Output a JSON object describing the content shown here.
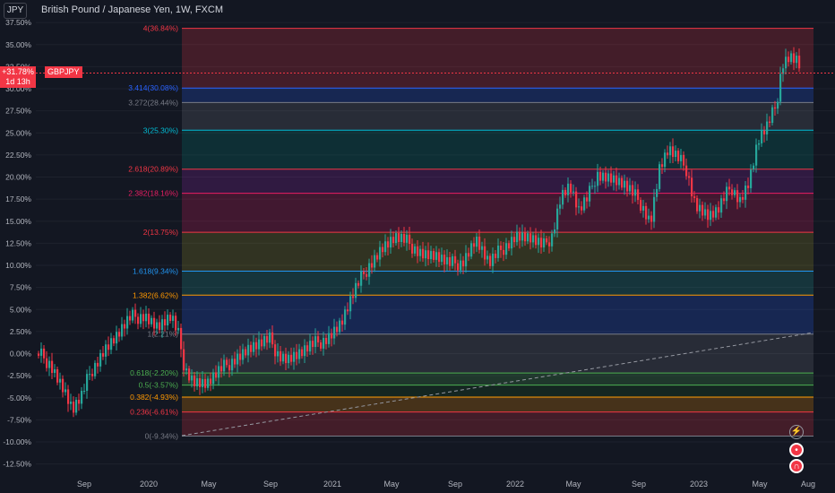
{
  "header": {
    "symbol": "JPY",
    "title": "British Pound / Japanese Yen, 1W, FXCM"
  },
  "badges": {
    "current_value": "+31.78%",
    "countdown": "1d 13h",
    "symbol": "GBPJPY"
  },
  "y_axis": {
    "ticks": [
      "37.50%",
      "35.00%",
      "32.50%",
      "30.00%",
      "27.50%",
      "25.00%",
      "22.50%",
      "20.00%",
      "17.50%",
      "15.00%",
      "12.50%",
      "10.00%",
      "7.50%",
      "5.00%",
      "2.50%",
      "0.00%",
      "-2.50%",
      "-5.00%",
      "-7.50%",
      "-10.00%",
      "-12.50%"
    ],
    "values": [
      37.5,
      35,
      32.5,
      30,
      27.5,
      25,
      22.5,
      20,
      17.5,
      15,
      12.5,
      10,
      7.5,
      5,
      2.5,
      0,
      -2.5,
      -5,
      -7.5,
      -10,
      -12.5
    ]
  },
  "x_axis": {
    "labels": [
      "Sep",
      "2020",
      "May",
      "Sep",
      "2021",
      "May",
      "Sep",
      "2022",
      "May",
      "Sep",
      "2023",
      "May",
      "Aug"
    ]
  },
  "fib": {
    "levels": [
      {
        "label": "4(36.84%)",
        "value": 36.84,
        "color": "#f23645"
      },
      {
        "label": "3.414(30.08%)",
        "value": 30.08,
        "color": "#2962ff"
      },
      {
        "label": "3.272(28.44%)",
        "value": 28.44,
        "color": "#787b86"
      },
      {
        "label": "3(25.30%)",
        "value": 25.3,
        "color": "#00bcd4"
      },
      {
        "label": "2.618(20.89%)",
        "value": 20.89,
        "color": "#f23645"
      },
      {
        "label": "2.382(18.16%)",
        "value": 18.16,
        "color": "#e91e63"
      },
      {
        "label": "2(13.75%)",
        "value": 13.75,
        "color": "#f23645"
      },
      {
        "label": "1.618(9.34%)",
        "value": 9.34,
        "color": "#2196f3"
      },
      {
        "label": "1.382(6.62%)",
        "value": 6.62,
        "color": "#ff9800"
      },
      {
        "label": "1(2.21%)",
        "value": 2.21,
        "color": "#787b86"
      },
      {
        "label": "0.618(-2.20%)",
        "value": -2.2,
        "color": "#4caf50"
      },
      {
        "label": "0.5(-3.57%)",
        "value": -3.57,
        "color": "#4caf50"
      },
      {
        "label": "0.382(-4.93%)",
        "value": -4.93,
        "color": "#ff9800"
      },
      {
        "label": "0.236(-6.61%)",
        "value": -6.61,
        "color": "#f23645"
      },
      {
        "label": "0(-9.34%)",
        "value": -9.34,
        "color": "#787b86"
      }
    ],
    "fills": [
      "#f23645",
      "#2962ff",
      "#787b86",
      "#00897b",
      "#9c27b0",
      "#e91e63",
      "#9e9d24",
      "#26a69a",
      "#2962ff",
      "#787b86",
      "#4caf50",
      "#1b5e20",
      "#ff9800",
      "#f23645"
    ]
  },
  "colors": {
    "up": "#26a69a",
    "down": "#f23645",
    "background": "#131722",
    "text": "#b2b5be"
  },
  "icons": [
    "lightning-icon",
    "alert-icon",
    "magnet-icon"
  ]
}
